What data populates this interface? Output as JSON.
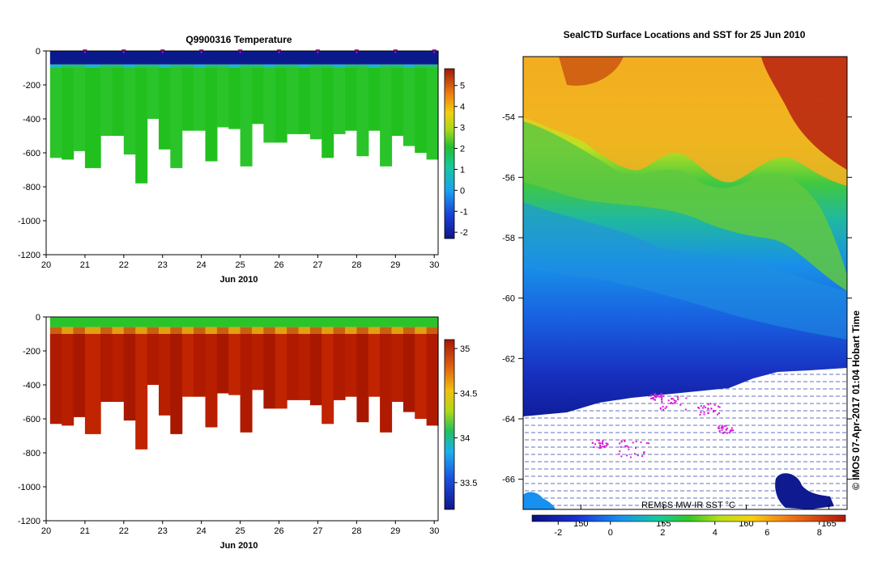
{
  "top_panel": {
    "title": "Q9900316  Temperature",
    "y_ticks": [
      "0",
      "-200",
      "-400",
      "-600",
      "-800",
      "-1000",
      "-1200"
    ],
    "x_ticks": [
      "20",
      "21",
      "22",
      "23",
      "24",
      "25",
      "26",
      "27",
      "28",
      "29",
      "30"
    ],
    "x_caption": "Jun 2010",
    "colorbar_ticks": [
      "5",
      "4",
      "3",
      "2",
      "1",
      "0",
      "-1",
      "-2"
    ],
    "colorbar_range": [
      -2.3,
      5.8
    ]
  },
  "bottom_panel": {
    "x_ticks": [
      "20",
      "21",
      "22",
      "23",
      "24",
      "25",
      "26",
      "27",
      "28",
      "29",
      "30"
    ],
    "x_caption": "Jun 2010",
    "y_ticks": [
      "0",
      "-200",
      "-400",
      "-600",
      "-800",
      "-1000",
      "-1200"
    ],
    "colorbar_ticks": [
      "35",
      "34.5",
      "34",
      "33.5"
    ],
    "colorbar_range": [
      33.2,
      35.1
    ]
  },
  "profiles": {
    "days": [
      20.1,
      20.4,
      20.7,
      21.0,
      21.4,
      21.7,
      22.0,
      22.3,
      22.6,
      22.9,
      23.2,
      23.5,
      23.8,
      24.1,
      24.4,
      24.7,
      25.0,
      25.3,
      25.6,
      25.9,
      26.2,
      26.5,
      26.8,
      27.1,
      27.4,
      27.7,
      28.0,
      28.3,
      28.6,
      28.9,
      29.2,
      29.5,
      29.8
    ],
    "max_depth_m": [
      -630,
      -640,
      -590,
      -690,
      -500,
      -500,
      -610,
      -780,
      -400,
      -580,
      -690,
      -470,
      -470,
      -650,
      -450,
      -460,
      -680,
      -430,
      -540,
      -540,
      -490,
      -490,
      -520,
      -630,
      -490,
      -470,
      -620,
      -470,
      -680,
      -500,
      -560,
      -600,
      -640
    ],
    "surface_marker_days": [
      21.0,
      22.0,
      23.0,
      24.0,
      25.0,
      26.0,
      27.0,
      28.0,
      29.0,
      30.0
    ]
  },
  "map": {
    "title": "SealCTD Surface Locations and SST for 25 Jun 2010",
    "lat_ticks": [
      "-54",
      "-56",
      "-58",
      "-60",
      "-62",
      "-64",
      "-66"
    ],
    "lon_ticks": [
      "150",
      "155",
      "160",
      "165"
    ],
    "product_label": "REMSS MW-IR SST °C",
    "colorbar_ticks": [
      "-2",
      "0",
      "2",
      "4",
      "6",
      "8"
    ],
    "colorbar_range": [
      -3,
      9
    ],
    "credit": "©  IMOS 07-Apr-2017 01:04 Hobart Time"
  },
  "colors": {
    "temp_cold": "#0a1a8c",
    "temp_mid": "#21c11f",
    "sal_high": "#b11a00",
    "marker": "#d81ad8"
  }
}
